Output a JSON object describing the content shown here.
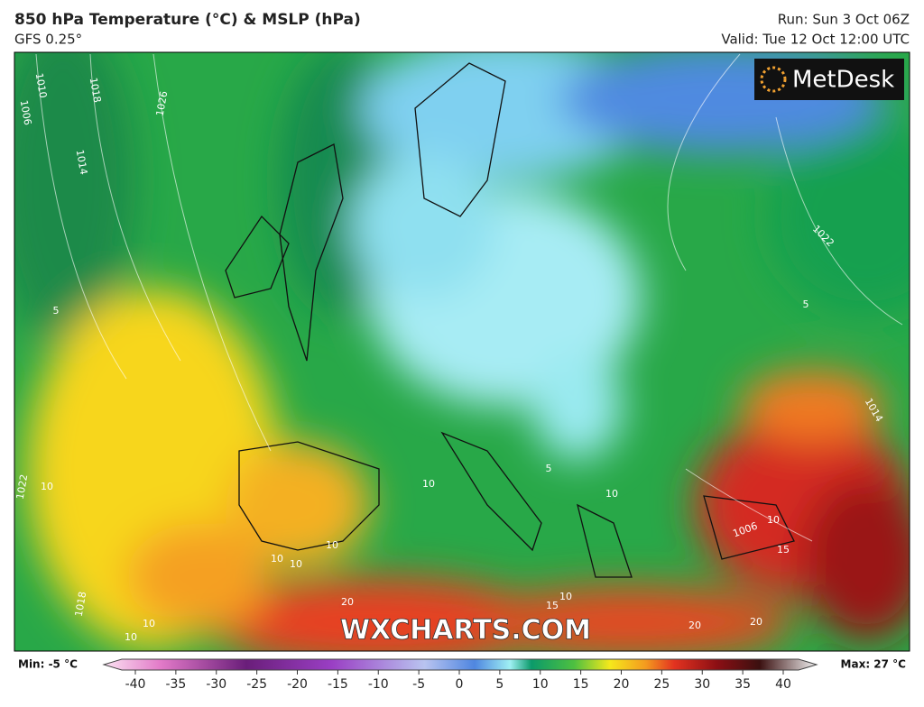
{
  "header": {
    "title": "850 hPa Temperature (°C) & MSLP (hPa)",
    "subtitle": "GFS 0.25°",
    "run": "Run: Sun 3 Oct 06Z",
    "valid": "Valid: Tue 12 Oct 12:00 UTC"
  },
  "logo": "MetDesk",
  "watermark": "WXCHARTS.COM",
  "map": {
    "labels": [
      "1010",
      "1018",
      "1026",
      "1006",
      "1014",
      "1022",
      "5",
      "5",
      "10",
      "1022",
      "10",
      "10",
      "10",
      "10",
      "10",
      "1018",
      "10",
      "10",
      "20",
      "15",
      "10",
      "1006",
      "15",
      "20",
      "20",
      "10",
      "1014",
      "5"
    ]
  },
  "colorbar": {
    "min_label": "Min: -5 °C",
    "max_label": "Max: 27 °C",
    "ticks": [
      -40,
      -35,
      -30,
      -25,
      -20,
      -15,
      -10,
      -5,
      0,
      5,
      10,
      15,
      20,
      25,
      30,
      35,
      40
    ]
  }
}
